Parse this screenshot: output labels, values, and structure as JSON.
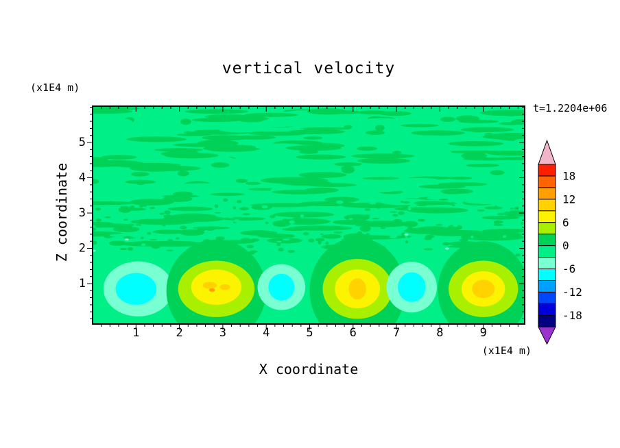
{
  "chart_data": {
    "type": "heatmap",
    "title": "vertical velocity",
    "timestamp": "t=1.2204e+06",
    "xlabel": "X coordinate",
    "ylabel": "Z coordinate",
    "x_unit": "(x1E4 m)",
    "y_unit": "(x1E4 m)",
    "x_range": [
      0,
      9.95
    ],
    "z_range": [
      -0.15,
      6.03
    ],
    "x_ticks": [
      1,
      2,
      3,
      4,
      5,
      6,
      7,
      8,
      9
    ],
    "y_ticks": [
      1,
      2,
      3,
      4,
      5
    ],
    "minor_tick_step": 0.2,
    "contour_interval": 3,
    "grid": false,
    "background_color": "#00ef87",
    "frame_color": "#000000",
    "legend_position": "right",
    "colorbar": {
      "tick_labels": [
        "18",
        "12",
        "6",
        "0",
        "-6",
        "-12",
        "-18"
      ],
      "over_color": "#f2b4c8",
      "under_color": "#9933cc",
      "cells": [
        {
          "from": 18,
          "to": 21,
          "color": "#ff1e00"
        },
        {
          "from": 15,
          "to": 18,
          "color": "#ff6400"
        },
        {
          "from": 12,
          "to": 15,
          "color": "#ffa000"
        },
        {
          "from": 9,
          "to": 12,
          "color": "#ffd200"
        },
        {
          "from": 6,
          "to": 9,
          "color": "#fbf300"
        },
        {
          "from": 3,
          "to": 6,
          "color": "#a8f000"
        },
        {
          "from": 0,
          "to": 3,
          "color": "#00d257"
        },
        {
          "from": -3,
          "to": 0,
          "color": "#00ef87"
        },
        {
          "from": -6,
          "to": -3,
          "color": "#78ffd2"
        },
        {
          "from": -9,
          "to": -6,
          "color": "#00ffff"
        },
        {
          "from": -12,
          "to": -9,
          "color": "#00a0ff"
        },
        {
          "from": -15,
          "to": -12,
          "color": "#0046ff"
        },
        {
          "from": -18,
          "to": -15,
          "color": "#0000dc"
        },
        {
          "from": -21,
          "to": -18,
          "color": "#000082"
        }
      ]
    },
    "noise": {
      "seed": 12345,
      "streaks": 260,
      "speckles": 170,
      "accents": 6,
      "z_band": [
        2.0,
        6.0
      ],
      "speckle_band": [
        1.8,
        3.4
      ],
      "streak_color": "#00d257",
      "accent_color": "#78ffd2"
    },
    "features": [
      {
        "name": "downdraft-cell-1",
        "sign": -1,
        "peak": -7.5,
        "layers": [
          {
            "x": 1.05,
            "z": 0.85,
            "rx": 0.8,
            "rz": 0.78,
            "v": -4.5
          },
          {
            "x": 1.0,
            "z": 0.85,
            "rx": 0.47,
            "rz": 0.45,
            "v": -7.5
          }
        ]
      },
      {
        "name": "updraft-cell-1",
        "sign": 1,
        "peak": 13.5,
        "layers": [
          {
            "x": 2.85,
            "z": 0.8,
            "rx": 1.15,
            "rz": 1.45,
            "v": 1.5
          },
          {
            "x": 2.85,
            "z": 0.85,
            "rx": 0.88,
            "rz": 0.8,
            "v": 4.5
          },
          {
            "x": 2.85,
            "z": 0.9,
            "rx": 0.58,
            "rz": 0.5,
            "v": 7.5
          },
          {
            "x": 2.7,
            "z": 0.95,
            "rx": 0.16,
            "rz": 0.1,
            "v": 10.5
          },
          {
            "x": 3.05,
            "z": 0.9,
            "rx": 0.12,
            "rz": 0.08,
            "v": 10.5
          },
          {
            "x": 2.75,
            "z": 0.82,
            "rx": 0.07,
            "rz": 0.05,
            "v": 13.5
          }
        ]
      },
      {
        "name": "downdraft-cell-2",
        "sign": -1,
        "peak": -7.5,
        "layers": [
          {
            "x": 4.35,
            "z": 0.9,
            "rx": 0.55,
            "rz": 0.65,
            "v": -4.5
          },
          {
            "x": 4.35,
            "z": 0.9,
            "rx": 0.3,
            "rz": 0.38,
            "v": -7.5
          }
        ]
      },
      {
        "name": "updraft-cell-2",
        "sign": 1,
        "peak": 10.5,
        "layers": [
          {
            "x": 6.1,
            "z": 0.8,
            "rx": 1.1,
            "rz": 1.5,
            "v": 1.5
          },
          {
            "x": 6.1,
            "z": 0.85,
            "rx": 0.8,
            "rz": 0.85,
            "v": 4.5
          },
          {
            "x": 6.1,
            "z": 0.85,
            "rx": 0.52,
            "rz": 0.55,
            "v": 7.5
          },
          {
            "x": 6.1,
            "z": 0.85,
            "rx": 0.2,
            "rz": 0.3,
            "v": 10.5
          }
        ]
      },
      {
        "name": "downdraft-cell-3",
        "sign": -1,
        "peak": -7.5,
        "layers": [
          {
            "x": 7.35,
            "z": 0.9,
            "rx": 0.58,
            "rz": 0.72,
            "v": -4.5
          },
          {
            "x": 7.35,
            "z": 0.9,
            "rx": 0.32,
            "rz": 0.42,
            "v": -7.5
          }
        ]
      },
      {
        "name": "updraft-cell-3",
        "sign": 1,
        "peak": 10.5,
        "layers": [
          {
            "x": 9.0,
            "z": 0.8,
            "rx": 1.05,
            "rz": 1.4,
            "v": 1.5
          },
          {
            "x": 9.0,
            "z": 0.85,
            "rx": 0.8,
            "rz": 0.8,
            "v": 4.5
          },
          {
            "x": 9.0,
            "z": 0.85,
            "rx": 0.5,
            "rz": 0.5,
            "v": 7.5
          },
          {
            "x": 9.0,
            "z": 0.85,
            "rx": 0.26,
            "rz": 0.26,
            "v": 10.5
          }
        ]
      }
    ]
  }
}
